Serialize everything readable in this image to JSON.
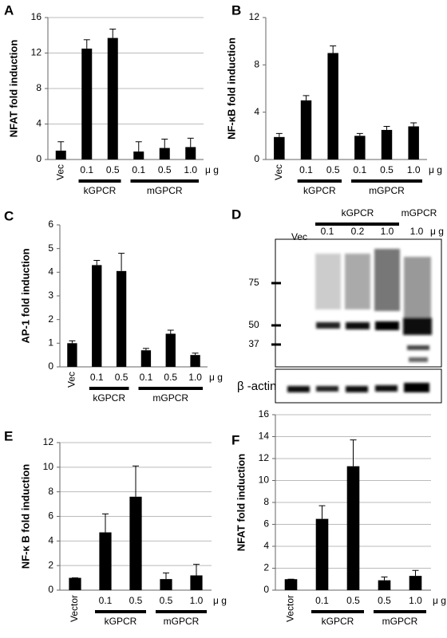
{
  "chart_data": [
    {
      "type": "bar",
      "panel": "A",
      "y_label": "NFAT fold induction",
      "categories": [
        "Vec",
        "0.1",
        "0.5",
        "0.1",
        "0.5",
        "1.0"
      ],
      "values": [
        1.0,
        12.5,
        13.7,
        0.9,
        1.3,
        1.4
      ],
      "errors": [
        1.0,
        1.0,
        1.0,
        1.1,
        1.0,
        1.0
      ],
      "groups": [
        {
          "label": "kGPCR",
          "categories": [
            1,
            2
          ]
        },
        {
          "label": "mGPCR",
          "categories": [
            3,
            5
          ]
        }
      ],
      "unit": "μ g",
      "color": "#000000",
      "ylim": [
        0,
        16
      ],
      "yticks": [
        0,
        4,
        8,
        12,
        16
      ],
      "grid": true
    },
    {
      "type": "bar",
      "panel": "B",
      "y_label": "NF-κB fold induction",
      "categories": [
        "Vec",
        "0.1",
        "0.5",
        "0.1",
        "0.5",
        "1.0"
      ],
      "values": [
        1.9,
        5.0,
        9.0,
        2.0,
        2.5,
        2.8
      ],
      "errors": [
        0.3,
        0.4,
        0.6,
        0.2,
        0.3,
        0.3
      ],
      "groups": [
        {
          "label": "kGPCR",
          "categories": [
            1,
            2
          ]
        },
        {
          "label": "mGPCR",
          "categories": [
            3,
            5
          ]
        }
      ],
      "unit": "μ g",
      "color": "#000000",
      "ylim": [
        0,
        12
      ],
      "yticks": [
        0,
        4,
        8,
        12
      ],
      "grid": false
    },
    {
      "type": "bar",
      "panel": "C",
      "y_label": "AP-1 fold induction",
      "categories": [
        "Vec",
        "0.1",
        "0.5",
        "0.1",
        "0.5",
        "1.0"
      ],
      "values": [
        1.0,
        4.3,
        4.05,
        0.7,
        1.4,
        0.5
      ],
      "errors": [
        0.1,
        0.2,
        0.75,
        0.08,
        0.15,
        0.08
      ],
      "groups": [
        {
          "label": "kGPCR",
          "categories": [
            1,
            2
          ]
        },
        {
          "label": "mGPCR",
          "categories": [
            3,
            5
          ]
        }
      ],
      "unit": "μ g",
      "color": "#000000",
      "ylim": [
        0,
        6
      ],
      "yticks": [
        0,
        1,
        2,
        3,
        4,
        5,
        6
      ],
      "grid": false
    },
    {
      "type": "bar",
      "panel": "E",
      "y_label": "NF-κ B fold induction",
      "categories": [
        "Vector",
        "0.1",
        "0.5",
        "0.5",
        "1.0"
      ],
      "values": [
        1.0,
        4.7,
        7.6,
        0.9,
        1.2
      ],
      "errors": [
        0,
        1.5,
        2.5,
        0.5,
        0.9
      ],
      "groups": [
        {
          "label": "kGPCR",
          "categories": [
            1,
            2
          ]
        },
        {
          "label": "mGPCR",
          "categories": [
            3,
            4
          ]
        }
      ],
      "unit": "μ g",
      "color": "#000000",
      "ylim": [
        0,
        12
      ],
      "yticks": [
        0,
        2,
        4,
        6,
        8,
        10,
        12
      ],
      "grid": true
    },
    {
      "type": "bar",
      "panel": "F",
      "y_label": "NFAT fold induction",
      "categories": [
        "Vector",
        "0.1",
        "0.5",
        "0.5",
        "1.0"
      ],
      "values": [
        1.0,
        6.5,
        11.3,
        0.9,
        1.3
      ],
      "errors": [
        0,
        1.2,
        2.4,
        0.3,
        0.5
      ],
      "groups": [
        {
          "label": "kGPCR",
          "categories": [
            1,
            2
          ]
        },
        {
          "label": "mGPCR",
          "categories": [
            3,
            4
          ]
        }
      ],
      "unit": "μ g",
      "color": "#000000",
      "ylim": [
        0,
        16
      ],
      "yticks": [
        0,
        2,
        4,
        6,
        8,
        10,
        12,
        14,
        16
      ],
      "grid": true
    }
  ],
  "blot": {
    "panel": "D",
    "lanes": [
      "Vec",
      "0.1",
      "0.2",
      "1.0",
      "1.0"
    ],
    "group_k": "kGPCR",
    "group_m": "mGPCR",
    "unit": "μ g",
    "markers": [
      75,
      50,
      37
    ],
    "loading_control": "β -actin"
  }
}
